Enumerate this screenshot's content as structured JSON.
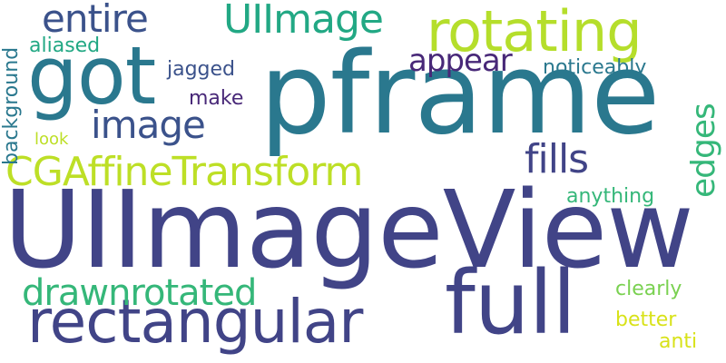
{
  "words": {
    "uiimageview": {
      "text": "UIImageView",
      "color": "#414487"
    },
    "pframe": {
      "text": "pframe",
      "color": "#2a788e"
    },
    "got": {
      "text": "got",
      "color": "#2a788e"
    },
    "full": {
      "text": "full",
      "color": "#414487"
    },
    "rectangular": {
      "text": "rectangular",
      "color": "#414487"
    },
    "rotating": {
      "text": "rotating",
      "color": "#b5de2b"
    },
    "cgaffinetransform": {
      "text": "CGAffineTransform",
      "color": "#bddf26"
    },
    "uiimage": {
      "text": "UIImage",
      "color": "#22a884"
    },
    "drawn": {
      "text": "drawn",
      "color": "#35b779"
    },
    "rotated": {
      "text": "rotated",
      "color": "#35b779"
    },
    "entire": {
      "text": "entire",
      "color": "#3b528b"
    },
    "image": {
      "text": "image",
      "color": "#3b528b"
    },
    "fills": {
      "text": "fills",
      "color": "#414487"
    },
    "edges": {
      "text": "edges",
      "color": "#35b779"
    },
    "appear": {
      "text": "appear",
      "color": "#482878"
    },
    "jagged": {
      "text": "jagged",
      "color": "#3b528b"
    },
    "aliased": {
      "text": "aliased",
      "color": "#22a884"
    },
    "make": {
      "text": "make",
      "color": "#482878"
    },
    "look": {
      "text": "look",
      "color": "#bddf26"
    },
    "background": {
      "text": "background",
      "color": "#2a788e"
    },
    "noticeably": {
      "text": "noticeably",
      "color": "#2a788e"
    },
    "anything": {
      "text": "anything",
      "color": "#35b779"
    },
    "clearly": {
      "text": "clearly",
      "color": "#7ad151"
    },
    "better": {
      "text": "better",
      "color": "#d8e219"
    },
    "anti": {
      "text": "anti",
      "color": "#d8e219"
    }
  }
}
